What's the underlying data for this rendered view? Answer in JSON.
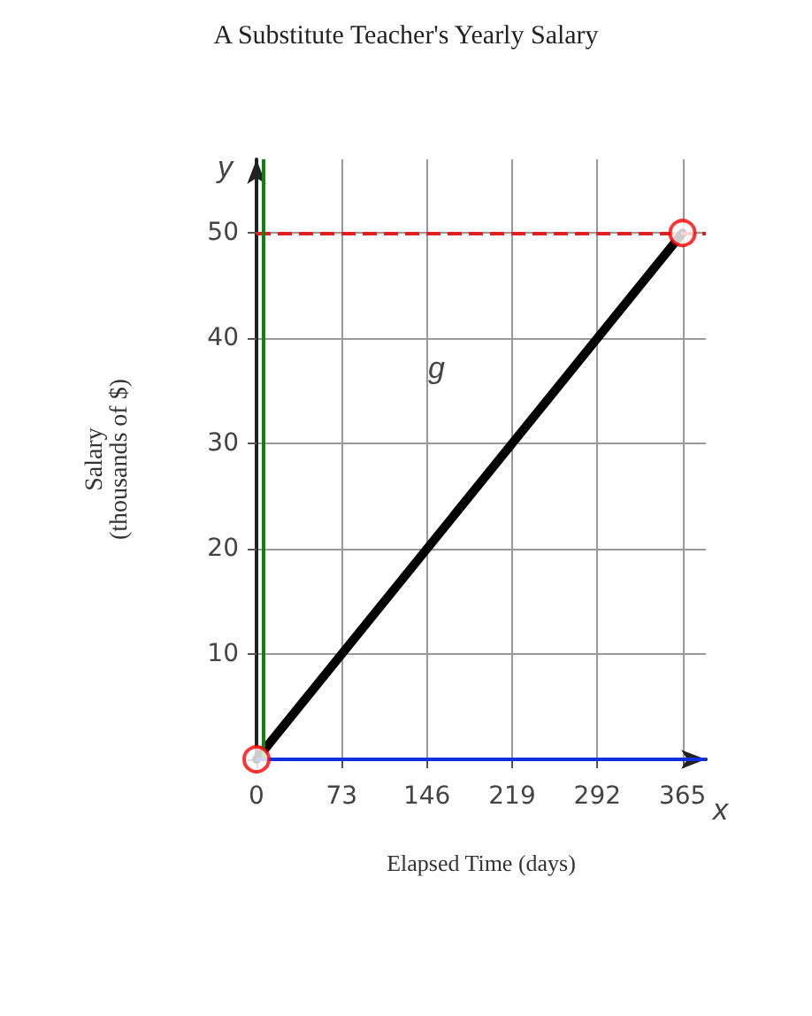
{
  "chart_data": {
    "type": "line",
    "title": "A Substitute Teacher's Yearly Salary",
    "xlabel": "Elapsed Time (days)",
    "ylabel": "Salary\n(thousands of $)",
    "xlim": [
      0,
      385
    ],
    "ylim": [
      0,
      57
    ],
    "xticks": [
      0,
      73,
      146,
      219,
      292,
      365
    ],
    "yticks": [
      {
        "value": 0,
        "label": null
      },
      10,
      20,
      30,
      40,
      50
    ],
    "grid": true,
    "x": [
      0,
      365
    ],
    "series": [
      {
        "color": "#000000",
        "values": [
          0,
          50
        ],
        "marker": "none",
        "line_style": "solid"
      },
      {
        "type": "scatter",
        "color": "#ff0000",
        "values": [
          0,
          50
        ],
        "marker": "circle"
      }
    ],
    "ref_lines": [
      {
        "axis": "y",
        "value": 50,
        "color": "#e02020",
        "line_style": "dashed"
      },
      {
        "axis": "y",
        "value": 0,
        "color": "#1030e0",
        "line_style": "solid"
      },
      {
        "axis": "x",
        "value": 6,
        "color": "#108010",
        "line_style": "solid"
      }
    ],
    "annotations": [
      "g",
      "x",
      "y"
    ]
  }
}
